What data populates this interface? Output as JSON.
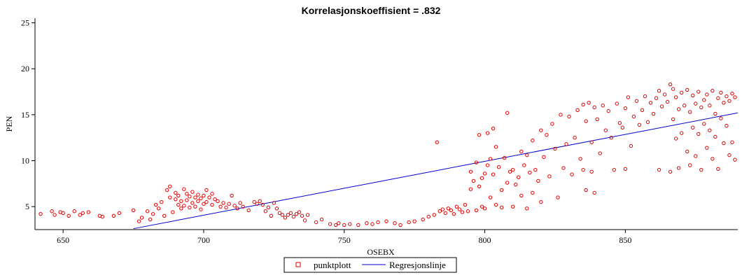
{
  "chart_data": {
    "type": "scatter",
    "title": "Korrelasjonskoeffisient =  .832",
    "xlabel": "OSEBX",
    "ylabel": "PEN",
    "xlim": [
      640,
      890
    ],
    "ylim": [
      2.5,
      25.5
    ],
    "xticks": [
      650,
      700,
      750,
      800,
      850
    ],
    "yticks": [
      5,
      10,
      15,
      20,
      25
    ],
    "grid": false,
    "legend": {
      "placement": "bottom-center",
      "entries": [
        "punktplott",
        "Regresjonslinje"
      ]
    },
    "series": [
      {
        "name": "punktplott",
        "kind": "scatter",
        "color": "#e00000",
        "points": [
          [
            642,
            4.2
          ],
          [
            646,
            4.5
          ],
          [
            647,
            4.1
          ],
          [
            649,
            4.4
          ],
          [
            650,
            4.3
          ],
          [
            652,
            4.0
          ],
          [
            654,
            4.5
          ],
          [
            656,
            4.1
          ],
          [
            657,
            4.3
          ],
          [
            659,
            4.4
          ],
          [
            663,
            4.0
          ],
          [
            664,
            3.9
          ],
          [
            668,
            4.0
          ],
          [
            670,
            4.3
          ],
          [
            675,
            4.6
          ],
          [
            677,
            3.4
          ],
          [
            678,
            3.8
          ],
          [
            680,
            4.5
          ],
          [
            681,
            3.6
          ],
          [
            682,
            4.2
          ],
          [
            683,
            5.2
          ],
          [
            684,
            4.8
          ],
          [
            685,
            5.5
          ],
          [
            686,
            4.0
          ],
          [
            687,
            6.8
          ],
          [
            688,
            7.2
          ],
          [
            688,
            6.0
          ],
          [
            689,
            4.4
          ],
          [
            690,
            6.5
          ],
          [
            690,
            5.8
          ],
          [
            691,
            5.2
          ],
          [
            691,
            6.2
          ],
          [
            692,
            5.6
          ],
          [
            692,
            4.8
          ],
          [
            693,
            6.9
          ],
          [
            693,
            5.1
          ],
          [
            694,
            6.4
          ],
          [
            694,
            5.7
          ],
          [
            695,
            6.1
          ],
          [
            695,
            4.9
          ],
          [
            696,
            6.6
          ],
          [
            696,
            5.4
          ],
          [
            697,
            6.0
          ],
          [
            697,
            5.0
          ],
          [
            698,
            6.3
          ],
          [
            698,
            5.6
          ],
          [
            699,
            5.9
          ],
          [
            699,
            4.7
          ],
          [
            700,
            6.2
          ],
          [
            700,
            5.3
          ],
          [
            701,
            6.8
          ],
          [
            701,
            5.5
          ],
          [
            702,
            6.0
          ],
          [
            703,
            5.2
          ],
          [
            703,
            6.4
          ],
          [
            704,
            5.8
          ],
          [
            705,
            5.6
          ],
          [
            706,
            5.0
          ],
          [
            707,
            5.4
          ],
          [
            708,
            4.9
          ],
          [
            709,
            5.3
          ],
          [
            710,
            6.2
          ],
          [
            711,
            5.1
          ],
          [
            712,
            4.8
          ],
          [
            713,
            5.4
          ],
          [
            714,
            5.0
          ],
          [
            716,
            4.6
          ],
          [
            718,
            5.5
          ],
          [
            719,
            5.3
          ],
          [
            720,
            5.6
          ],
          [
            721,
            5.2
          ],
          [
            722,
            4.5
          ],
          [
            723,
            4.9
          ],
          [
            724,
            4.0
          ],
          [
            725,
            5.4
          ],
          [
            726,
            4.8
          ],
          [
            727,
            4.3
          ],
          [
            728,
            4.1
          ],
          [
            729,
            3.8
          ],
          [
            730,
            4.1
          ],
          [
            731,
            4.3
          ],
          [
            732,
            3.9
          ],
          [
            733,
            4.2
          ],
          [
            734,
            4.4
          ],
          [
            735,
            4.0
          ],
          [
            736,
            3.5
          ],
          [
            737,
            4.1
          ],
          [
            740,
            3.3
          ],
          [
            742,
            3.6
          ],
          [
            745,
            3.1
          ],
          [
            747,
            3.0
          ],
          [
            748,
            3.2
          ],
          [
            750,
            3.0
          ],
          [
            752,
            3.1
          ],
          [
            755,
            3.0
          ],
          [
            758,
            3.2
          ],
          [
            760,
            3.1
          ],
          [
            762,
            3.3
          ],
          [
            765,
            3.4
          ],
          [
            768,
            3.2
          ],
          [
            770,
            3.0
          ],
          [
            773,
            3.3
          ],
          [
            775,
            3.4
          ],
          [
            778,
            3.6
          ],
          [
            780,
            3.9
          ],
          [
            782,
            4.1
          ],
          [
            783,
            12.0
          ],
          [
            784,
            4.5
          ],
          [
            785,
            4.7
          ],
          [
            786,
            4.3
          ],
          [
            787,
            4.8
          ],
          [
            788,
            4.6
          ],
          [
            789,
            4.2
          ],
          [
            790,
            5.0
          ],
          [
            791,
            4.7
          ],
          [
            792,
            4.4
          ],
          [
            793,
            5.2
          ],
          [
            794,
            4.5
          ],
          [
            795,
            8.8
          ],
          [
            795,
            6.9
          ],
          [
            796,
            7.8
          ],
          [
            797,
            9.8
          ],
          [
            797,
            4.6
          ],
          [
            798,
            12.8
          ],
          [
            798,
            7.2
          ],
          [
            799,
            8.1
          ],
          [
            799,
            5.0
          ],
          [
            800,
            8.6
          ],
          [
            800,
            4.8
          ],
          [
            801,
            13.0
          ],
          [
            801,
            9.5
          ],
          [
            802,
            10.2
          ],
          [
            802,
            6.0
          ],
          [
            803,
            13.5
          ],
          [
            803,
            8.5
          ],
          [
            804,
            11.5
          ],
          [
            804,
            5.2
          ],
          [
            805,
            9.3
          ],
          [
            806,
            6.8
          ],
          [
            806,
            4.9
          ],
          [
            807,
            10.3
          ],
          [
            808,
            15.2
          ],
          [
            808,
            7.6
          ],
          [
            809,
            8.8
          ],
          [
            810,
            9.0
          ],
          [
            810,
            5.0
          ],
          [
            811,
            7.4
          ],
          [
            812,
            8.2
          ],
          [
            813,
            11.0
          ],
          [
            813,
            6.2
          ],
          [
            814,
            9.5
          ],
          [
            815,
            10.6
          ],
          [
            815,
            4.8
          ],
          [
            816,
            8.7
          ],
          [
            817,
            12.2
          ],
          [
            817,
            6.5
          ],
          [
            818,
            9.0
          ],
          [
            819,
            7.8
          ],
          [
            820,
            13.3
          ],
          [
            820,
            5.5
          ],
          [
            821,
            10.4
          ],
          [
            822,
            12.8
          ],
          [
            823,
            8.3
          ],
          [
            824,
            14.0
          ],
          [
            825,
            11.3
          ],
          [
            826,
            6.0
          ],
          [
            827,
            15.0
          ],
          [
            828,
            9.2
          ],
          [
            829,
            11.8
          ],
          [
            830,
            14.8
          ],
          [
            831,
            8.5
          ],
          [
            832,
            12.5
          ],
          [
            833,
            15.5
          ],
          [
            834,
            10.2
          ],
          [
            835,
            16.1
          ],
          [
            835,
            9.0
          ],
          [
            836,
            14.3
          ],
          [
            836,
            6.8
          ],
          [
            837,
            16.3
          ],
          [
            838,
            12.0
          ],
          [
            838,
            8.8
          ],
          [
            839,
            15.8
          ],
          [
            839,
            6.5
          ],
          [
            840,
            14.5
          ],
          [
            841,
            10.8
          ],
          [
            842,
            16.0
          ],
          [
            843,
            13.3
          ],
          [
            844,
            15.4
          ],
          [
            845,
            12.5
          ],
          [
            846,
            9.0
          ],
          [
            847,
            16.2
          ],
          [
            848,
            14.1
          ],
          [
            849,
            13.6
          ],
          [
            850,
            15.7
          ],
          [
            850,
            9.1
          ],
          [
            851,
            16.9
          ],
          [
            852,
            11.6
          ],
          [
            853,
            14.8
          ],
          [
            854,
            16.5
          ],
          [
            855,
            13.9
          ],
          [
            856,
            15.5
          ],
          [
            857,
            17.0
          ],
          [
            858,
            14.2
          ],
          [
            859,
            16.3
          ],
          [
            860,
            15.1
          ],
          [
            861,
            16.8
          ],
          [
            862,
            17.6
          ],
          [
            862,
            9.0
          ],
          [
            863,
            15.9
          ],
          [
            864,
            17.2
          ],
          [
            865,
            16.4
          ],
          [
            866,
            18.3
          ],
          [
            866,
            8.8
          ],
          [
            867,
            17.8
          ],
          [
            867,
            14.5
          ],
          [
            868,
            16.9
          ],
          [
            868,
            12.4
          ],
          [
            869,
            15.6
          ],
          [
            869,
            9.2
          ],
          [
            870,
            17.4
          ],
          [
            870,
            13.0
          ],
          [
            871,
            16.0
          ],
          [
            872,
            17.7
          ],
          [
            872,
            11.0
          ],
          [
            873,
            15.3
          ],
          [
            873,
            9.5
          ],
          [
            874,
            17.1
          ],
          [
            874,
            13.6
          ],
          [
            875,
            16.2
          ],
          [
            875,
            10.5
          ],
          [
            876,
            17.5
          ],
          [
            876,
            12.9
          ],
          [
            877,
            15.8
          ],
          [
            877,
            9.0
          ],
          [
            878,
            16.6
          ],
          [
            878,
            14.0
          ],
          [
            879,
            17.2
          ],
          [
            879,
            11.4
          ],
          [
            880,
            16.0
          ],
          [
            880,
            13.3
          ],
          [
            881,
            17.6
          ],
          [
            881,
            10.2
          ],
          [
            882,
            15.1
          ],
          [
            882,
            12.6
          ],
          [
            883,
            16.8
          ],
          [
            883,
            9.1
          ],
          [
            884,
            17.4
          ],
          [
            884,
            14.6
          ],
          [
            885,
            16.3
          ],
          [
            885,
            11.9
          ],
          [
            886,
            17.0
          ],
          [
            886,
            13.8
          ],
          [
            887,
            16.5
          ],
          [
            887,
            10.6
          ],
          [
            888,
            17.3
          ],
          [
            888,
            12.0
          ],
          [
            889,
            16.9
          ],
          [
            889,
            10.1
          ]
        ]
      },
      {
        "name": "Regresjonslinje",
        "kind": "line",
        "color": "#0000cc",
        "points": [
          [
            675,
            2.6
          ],
          [
            890,
            15.2
          ]
        ]
      }
    ]
  }
}
